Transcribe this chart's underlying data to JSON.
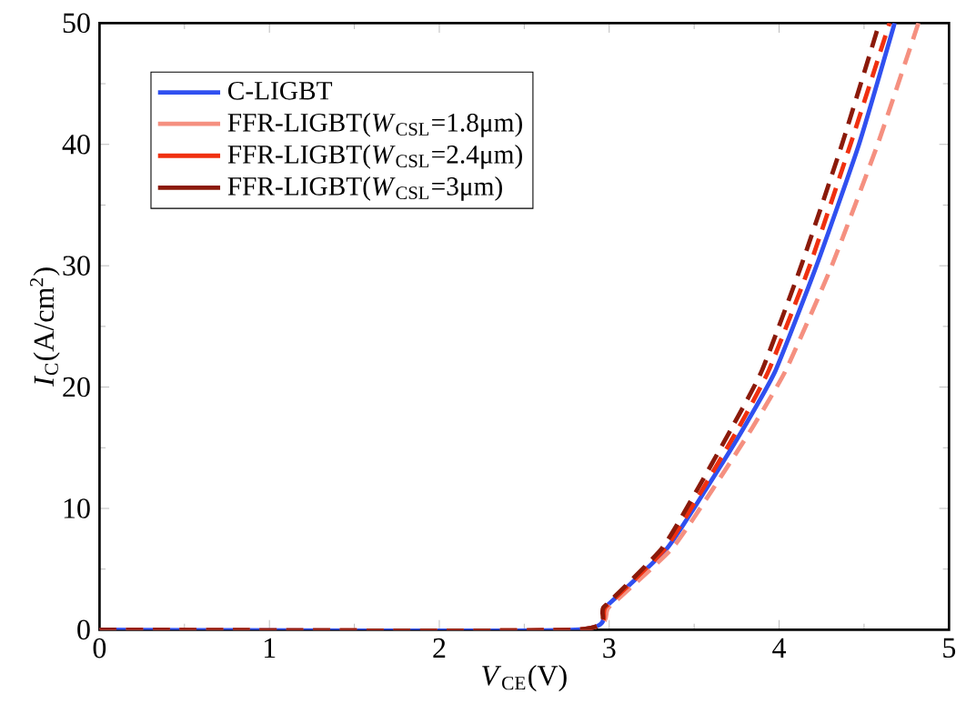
{
  "chart_data": {
    "type": "line",
    "xlabel": "*V*$_{CE}$(V)",
    "ylabel": "*I*$_{C}$(A/cm$^{2}$)",
    "xlim": [
      0,
      5
    ],
    "ylim": [
      0,
      50
    ],
    "xticks": [
      0,
      1,
      2,
      3,
      4,
      5
    ],
    "yticks": [
      0,
      10,
      20,
      30,
      40,
      50
    ],
    "grid": false,
    "legend": "top left",
    "marker": "none",
    "series": [
      {
        "name": "C-LIGBT",
        "color": "#3050f0",
        "line_style": "solid",
        "x": [
          0,
          2.8,
          2.98,
          3.34,
          3.57,
          3.79,
          3.98,
          4.22,
          4.47,
          4.68
        ],
        "values": [
          0,
          0,
          1.9,
          6.7,
          11.6,
          16.6,
          21.4,
          30,
          40,
          50
        ]
      },
      {
        "name": "FFR-LIGBT(*W*$_{CSL}$=1.8μm)",
        "color": "#f59080",
        "line_style": "dashed",
        "x": [
          0,
          2.8,
          3.0,
          3.37,
          3.61,
          3.84,
          4.04,
          4.31,
          4.58,
          4.82
        ],
        "values": [
          0,
          0,
          1.9,
          6.7,
          11.6,
          16.6,
          21.4,
          30,
          40,
          50
        ]
      },
      {
        "name": "FFR-LIGBT(*W*$_{CSL}$=2.4μm)",
        "color": "#f03010",
        "line_style": "dashed",
        "x": [
          0,
          2.8,
          2.98,
          3.33,
          3.55,
          3.76,
          3.94,
          4.18,
          4.42,
          4.65
        ],
        "values": [
          0,
          0,
          1.9,
          6.7,
          11.6,
          16.6,
          21.4,
          30,
          40,
          50
        ]
      },
      {
        "name": "FFR-LIGBT(*W*$_{CSL}$=3μm)",
        "color": "#8b1a0a",
        "line_style": "dashed",
        "x": [
          0,
          2.8,
          2.97,
          3.31,
          3.52,
          3.72,
          3.9,
          4.13,
          4.37,
          4.59
        ],
        "values": [
          0,
          0,
          1.9,
          6.7,
          11.6,
          16.6,
          21.4,
          30,
          40,
          50
        ]
      }
    ]
  }
}
